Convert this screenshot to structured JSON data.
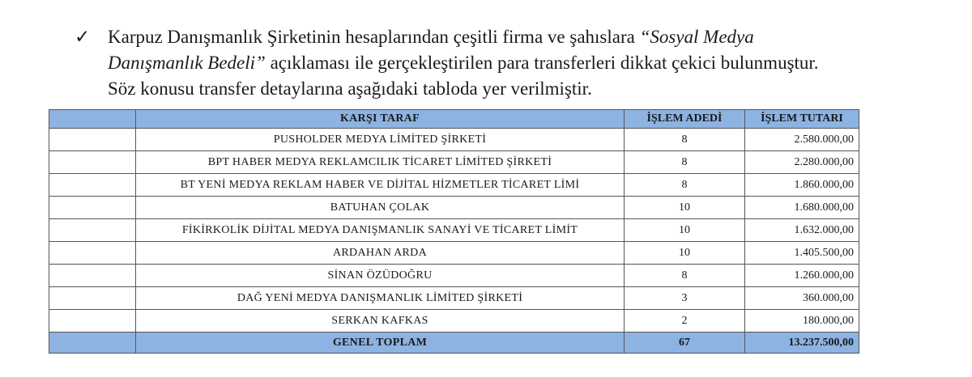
{
  "paragraph": {
    "check_icon": "✓",
    "text_before": "Karpuz Danışmanlık Şirketinin hesaplarından çeşitli firma ve şahıslara ",
    "italic": "“Sosyal Medya Danışmanlık Bedeli”",
    "text_after": " açıklaması ile gerçekleştirilen para transferleri dikkat çekici bulunmuştur. Söz konusu transfer detaylarına aşağıdaki tabloda yer verilmiştir."
  },
  "table": {
    "header_color": "#8db3e2",
    "headers": [
      "",
      "KARŞI TARAF",
      "İŞLEM ADEDİ",
      "İŞLEM TUTARI"
    ],
    "rows": [
      {
        "name": "PUSHOLDER MEDYA LİMİTED ŞİRKETİ",
        "count": "8",
        "amount": "2.580.000,00"
      },
      {
        "name": "BPT HABER MEDYA REKLAMCILIK TİCARET LİMİTED ŞİRKETİ",
        "count": "8",
        "amount": "2.280.000,00"
      },
      {
        "name": "BT YENİ MEDYA REKLAM HABER VE DİJİTAL HİZMETLER TİCARET LİMİ",
        "count": "8",
        "amount": "1.860.000,00"
      },
      {
        "name": "BATUHAN ÇOLAK",
        "count": "10",
        "amount": "1.680.000,00"
      },
      {
        "name": "FİKİRKOLİK DİJİTAL MEDYA DANIŞMANLIK SANAYİ VE TİCARET LİMİT",
        "count": "10",
        "amount": "1.632.000,00"
      },
      {
        "name": "ARDAHAN ARDA",
        "count": "10",
        "amount": "1.405.500,00"
      },
      {
        "name": "SİNAN ÖZÜDOĞRU",
        "count": "8",
        "amount": "1.260.000,00"
      },
      {
        "name": "DAĞ YENİ MEDYA DANIŞMANLIK LİMİTED ŞİRKETİ",
        "count": "3",
        "amount": "360.000,00"
      },
      {
        "name": "SERKAN KAFKAS",
        "count": "2",
        "amount": "180.000,00"
      }
    ],
    "total": {
      "label": "GENEL TOPLAM",
      "count": "67",
      "amount": "13.237.500,00"
    }
  }
}
